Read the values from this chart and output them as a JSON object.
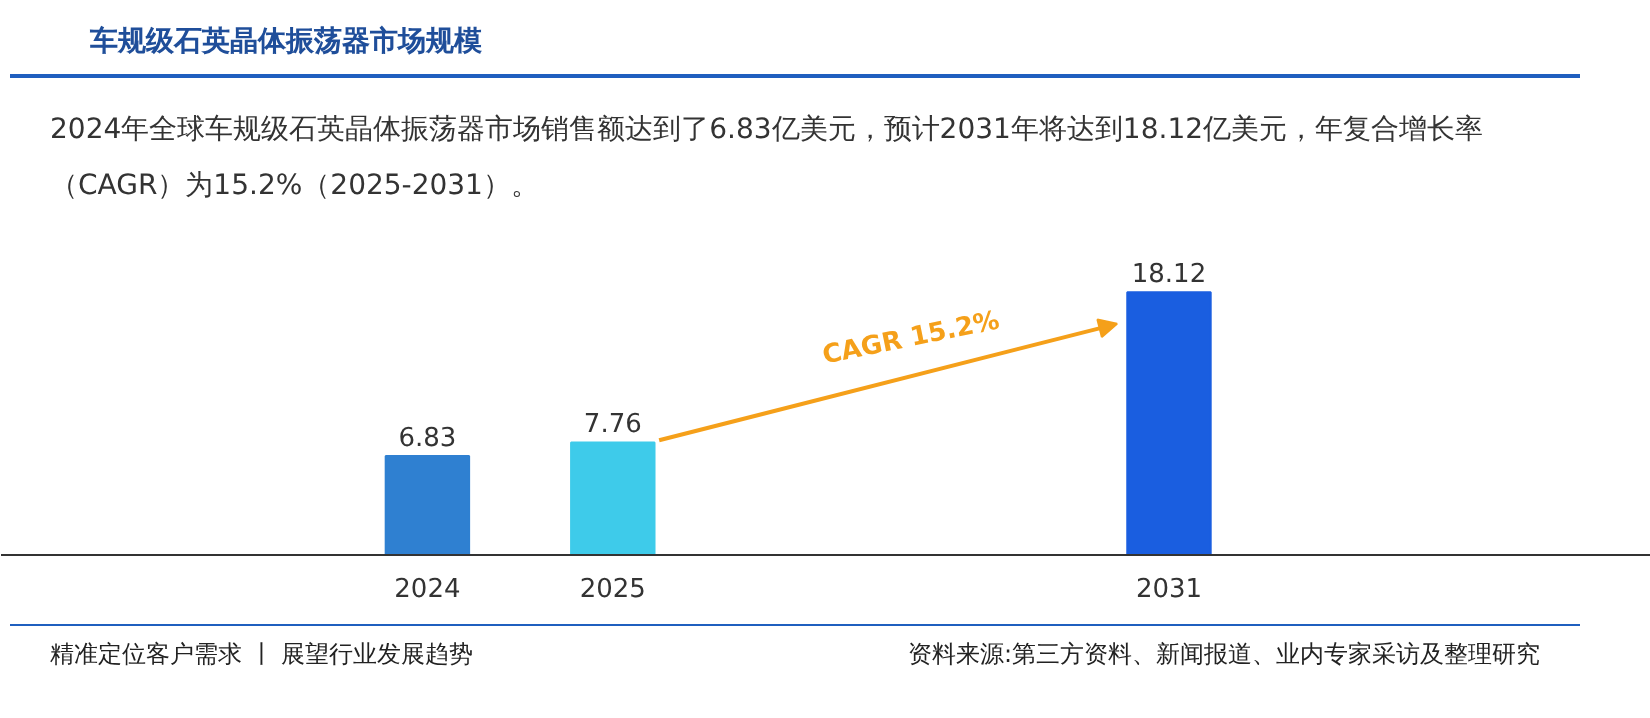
{
  "chart_data": {
    "type": "bar",
    "title": "车规级石英晶体振荡器市场规模",
    "subtitle": "2024年全球车规级石英晶体振荡器市场销售额达到了6.83亿美元，预计2031年将达到18.12亿美元，年复合增长率（CAGR）为15.2%（2025-2031）。",
    "categories": [
      "2024",
      "2025",
      null,
      null,
      "2031"
    ],
    "values": [
      6.83,
      7.76,
      null,
      null,
      18.12
    ],
    "colors": [
      "#2f80d1",
      "#3ecbea",
      "#cccccc",
      "#cccccc",
      "#1a5ee0"
    ],
    "data_labels": true,
    "annotations": [
      "CAGR 15.2%",
      "精准定位客户需求 丨 展望行业发展趋势",
      "资料来源:第三方资料、新闻报道、业内专家采访及整理研究"
    ],
    "grid": false
  }
}
